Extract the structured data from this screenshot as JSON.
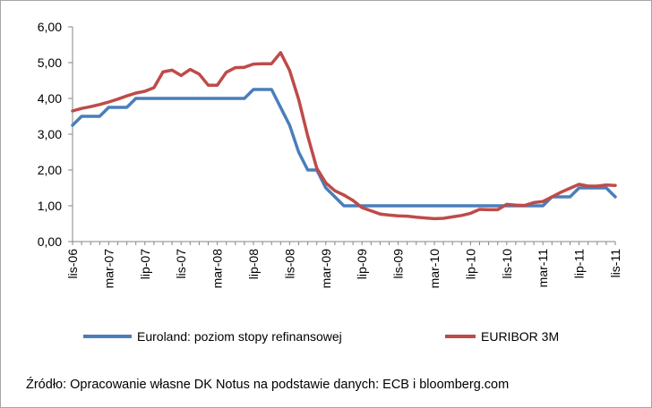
{
  "chart_data": {
    "type": "line",
    "title": "",
    "xlabel": "",
    "ylabel": "",
    "ylim": [
      0,
      6
    ],
    "y_ticks": [
      "0,00",
      "1,00",
      "2,00",
      "3,00",
      "4,00",
      "5,00",
      "6,00"
    ],
    "x_tick_labels": [
      "lis-06",
      "mar-07",
      "lip-07",
      "lis-07",
      "mar-08",
      "lip-08",
      "lis-08",
      "mar-09",
      "lip-09",
      "lis-09",
      "mar-10",
      "lip-10",
      "lis-10",
      "mar-11",
      "lip-11",
      "lis-11"
    ],
    "grid": "none",
    "legend_position": "bottom",
    "x": [
      "2006-11",
      "2006-12",
      "2007-01",
      "2007-02",
      "2007-03",
      "2007-04",
      "2007-05",
      "2007-06",
      "2007-07",
      "2007-08",
      "2007-09",
      "2007-10",
      "2007-11",
      "2007-12",
      "2008-01",
      "2008-02",
      "2008-03",
      "2008-04",
      "2008-05",
      "2008-06",
      "2008-07",
      "2008-08",
      "2008-09",
      "2008-10",
      "2008-11",
      "2008-12",
      "2009-01",
      "2009-02",
      "2009-03",
      "2009-04",
      "2009-05",
      "2009-06",
      "2009-07",
      "2009-08",
      "2009-09",
      "2009-10",
      "2009-11",
      "2009-12",
      "2010-01",
      "2010-02",
      "2010-03",
      "2010-04",
      "2010-05",
      "2010-06",
      "2010-07",
      "2010-08",
      "2010-09",
      "2010-10",
      "2010-11",
      "2010-12",
      "2011-01",
      "2011-02",
      "2011-03",
      "2011-04",
      "2011-05",
      "2011-06",
      "2011-07",
      "2011-08",
      "2011-09",
      "2011-10",
      "2011-11"
    ],
    "series": [
      {
        "name": "Euroland: poziom stopy refinansowej",
        "color": "#4a7ebb",
        "values": [
          3.25,
          3.5,
          3.5,
          3.5,
          3.75,
          3.75,
          3.75,
          4.0,
          4.0,
          4.0,
          4.0,
          4.0,
          4.0,
          4.0,
          4.0,
          4.0,
          4.0,
          4.0,
          4.0,
          4.0,
          4.25,
          4.25,
          4.25,
          3.75,
          3.25,
          2.5,
          2.0,
          2.0,
          1.5,
          1.25,
          1.0,
          1.0,
          1.0,
          1.0,
          1.0,
          1.0,
          1.0,
          1.0,
          1.0,
          1.0,
          1.0,
          1.0,
          1.0,
          1.0,
          1.0,
          1.0,
          1.0,
          1.0,
          1.0,
          1.0,
          1.0,
          1.0,
          1.0,
          1.25,
          1.25,
          1.25,
          1.5,
          1.5,
          1.5,
          1.5,
          1.25
        ]
      },
      {
        "name": "EURIBOR 3M",
        "color": "#be4b48",
        "values": [
          3.65,
          3.72,
          3.77,
          3.83,
          3.9,
          3.98,
          4.07,
          4.15,
          4.2,
          4.3,
          4.74,
          4.79,
          4.64,
          4.81,
          4.68,
          4.37,
          4.37,
          4.73,
          4.86,
          4.87,
          4.96,
          4.97,
          4.97,
          5.28,
          4.78,
          3.97,
          2.95,
          2.05,
          1.64,
          1.42,
          1.3,
          1.15,
          0.95,
          0.86,
          0.77,
          0.74,
          0.72,
          0.71,
          0.68,
          0.66,
          0.64,
          0.65,
          0.69,
          0.73,
          0.79,
          0.9,
          0.89,
          0.89,
          1.04,
          1.02,
          1.01,
          1.09,
          1.12,
          1.25,
          1.38,
          1.49,
          1.6,
          1.55,
          1.55,
          1.58,
          1.57
        ]
      }
    ]
  },
  "source_note": "Źródło: Opracowanie własne  DK Notus na podstawie danych: ECB i bloomberg.com"
}
